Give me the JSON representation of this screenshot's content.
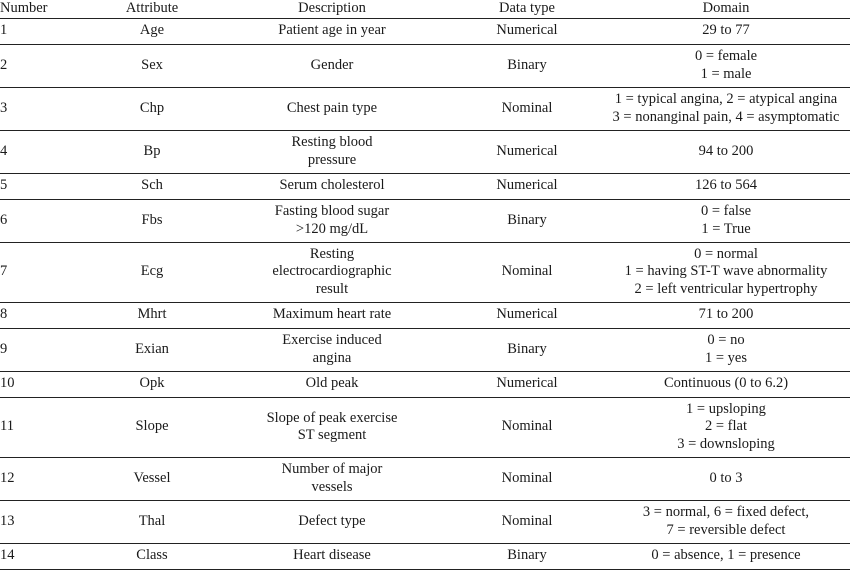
{
  "table": {
    "headers": [
      "Number",
      "Attribute",
      "Description",
      "Data type",
      "Domain"
    ],
    "rows": [
      {
        "number": "1",
        "attribute": "Age",
        "description": "Patient age in year",
        "data_type": "Numerical",
        "domain": "29 to 77"
      },
      {
        "number": "2",
        "attribute": "Sex",
        "description": "Gender",
        "data_type": "Binary",
        "domain": "0 = female\n1 = male"
      },
      {
        "number": "3",
        "attribute": "Chp",
        "description": "Chest pain type",
        "data_type": "Nominal",
        "domain": "1 = typical angina, 2 = atypical angina\n3 = nonanginal pain, 4 = asymptomatic"
      },
      {
        "number": "4",
        "attribute": "Bp",
        "description": "Resting blood\npressure",
        "data_type": "Numerical",
        "domain": "94 to 200"
      },
      {
        "number": "5",
        "attribute": "Sch",
        "description": "Serum cholesterol",
        "data_type": "Numerical",
        "domain": "126 to 564"
      },
      {
        "number": "6",
        "attribute": "Fbs",
        "description": "Fasting blood sugar\n>120 mg/dL",
        "data_type": "Binary",
        "domain": "0 = false\n1 = True"
      },
      {
        "number": "7",
        "attribute": "Ecg",
        "description": "Resting\nelectrocardiographic\nresult",
        "data_type": "Nominal",
        "domain": "0 = normal\n1 = having ST-T wave abnormality\n2 = left ventricular hypertrophy"
      },
      {
        "number": "8",
        "attribute": "Mhrt",
        "description": "Maximum heart rate",
        "data_type": "Numerical",
        "domain": "71 to 200"
      },
      {
        "number": "9",
        "attribute": "Exian",
        "description": "Exercise induced\nangina",
        "data_type": "Binary",
        "domain": "0 = no\n1 = yes"
      },
      {
        "number": "10",
        "attribute": "Opk",
        "description": "Old peak",
        "data_type": "Numerical",
        "domain": "Continuous (0 to 6.2)"
      },
      {
        "number": "11",
        "attribute": "Slope",
        "description": "Slope of peak exercise\nST segment",
        "data_type": "Nominal",
        "domain": "1 = upsloping\n2 = flat\n3 = downsloping"
      },
      {
        "number": "12",
        "attribute": "Vessel",
        "description": "Number of major\nvessels",
        "data_type": "Nominal",
        "domain": "0 to 3"
      },
      {
        "number": "13",
        "attribute": "Thal",
        "description": "Defect type",
        "data_type": "Nominal",
        "domain": "3 = normal, 6 = fixed defect,\n7 = reversible defect"
      },
      {
        "number": "14",
        "attribute": "Class",
        "description": "Heart disease",
        "data_type": "Binary",
        "domain": "0 = absence, 1 = presence"
      }
    ]
  }
}
